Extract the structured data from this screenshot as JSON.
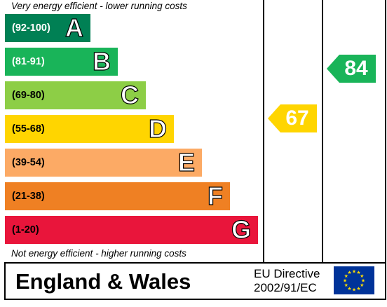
{
  "captions": {
    "top": "Very energy efficient - lower running costs",
    "bottom": "Not energy efficient - higher running costs"
  },
  "bands": [
    {
      "range": "(92-100)",
      "letter": "A",
      "color": "#008054",
      "range_color": "#ffffff"
    },
    {
      "range": "(81-91)",
      "letter": "B",
      "color": "#19b459",
      "range_color": "#ffffff"
    },
    {
      "range": "(69-80)",
      "letter": "C",
      "color": "#8dce46",
      "range_color": "#000000"
    },
    {
      "range": "(55-68)",
      "letter": "D",
      "color": "#ffd500",
      "range_color": "#000000"
    },
    {
      "range": "(39-54)",
      "letter": "E",
      "color": "#fcaa65",
      "range_color": "#000000"
    },
    {
      "range": "(21-38)",
      "letter": "F",
      "color": "#ef8023",
      "range_color": "#000000"
    },
    {
      "range": "(1-20)",
      "letter": "G",
      "color": "#e9153b",
      "range_color": "#000000"
    }
  ],
  "ratings": {
    "current": {
      "value": "67",
      "band": "D",
      "color": "#ffd500"
    },
    "potential": {
      "value": "84",
      "band": "B",
      "color": "#19b459"
    }
  },
  "footer": {
    "region": "England & Wales",
    "directive_line1": "EU Directive",
    "directive_line2": "2002/91/EC",
    "flag_icon": "eu-flag-icon"
  }
}
